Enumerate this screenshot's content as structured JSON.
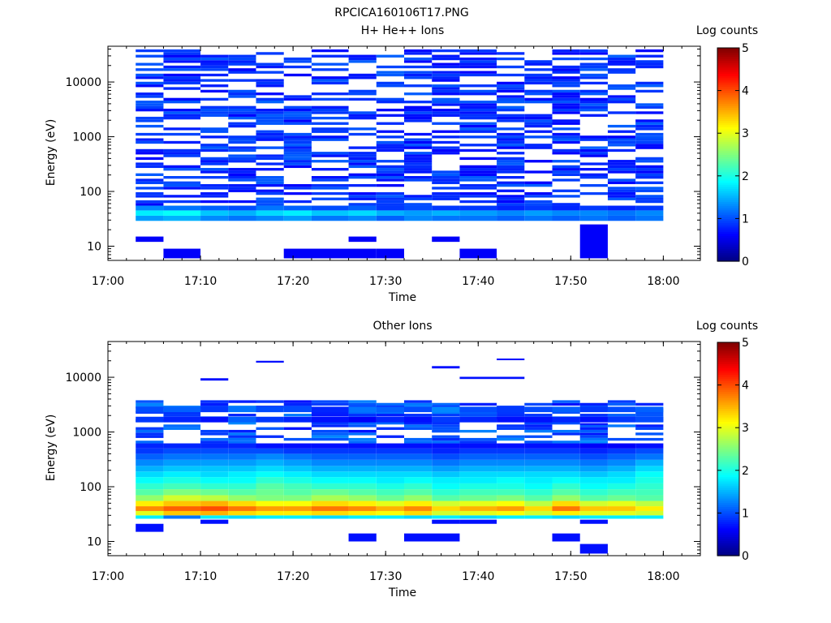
{
  "figure": {
    "title": "RPCICA160106T17.PNG"
  },
  "colors": {
    "colormap": [
      "#00007f",
      "#0000ff",
      "#007fff",
      "#00ffff",
      "#7fff7f",
      "#ffff00",
      "#ff7f00",
      "#ff0000",
      "#7f0000"
    ],
    "axis": "#000000"
  },
  "chart_data": [
    {
      "type": "heatmap",
      "title": "H+ He++ Ions",
      "xlabel": "Time",
      "ylabel": "Energy (eV)",
      "colorbar_label": "Log counts",
      "colorbar_range": [
        0,
        5
      ],
      "colorbar_ticks": [
        "0",
        "1",
        "2",
        "3",
        "4",
        "5"
      ],
      "x_ticks": [
        "17:00",
        "17:10",
        "17:20",
        "17:30",
        "17:40",
        "17:50",
        "18:00"
      ],
      "x_range": [
        "17:00",
        "18:04"
      ],
      "y_scale": "log",
      "y_range": [
        5.5,
        45000
      ],
      "y_ticks": [
        "10",
        "100",
        "1000",
        "10000"
      ],
      "time_bins": [
        "17:03",
        "17:06",
        "17:10",
        "17:13",
        "17:16",
        "17:19",
        "17:22",
        "17:26",
        "17:29",
        "17:32",
        "17:35",
        "17:38",
        "17:42",
        "17:45",
        "17:48",
        "17:51",
        "17:54",
        "17:57",
        "18:00"
      ],
      "background_level": 0.6,
      "rows": [
        {
          "e_lo": 29,
          "e_hi": 36,
          "values": [
            1.4,
            1.5,
            1.3,
            1.2,
            1.3,
            1.4,
            1.2,
            1.3,
            1.1,
            1.3,
            1.2,
            1.2,
            1.1,
            1.2,
            1.1,
            1.2,
            1.1,
            1.2
          ]
        },
        {
          "e_lo": 36,
          "e_hi": 45,
          "values": [
            1.8,
            1.9,
            1.6,
            1.5,
            1.7,
            1.8,
            1.6,
            1.7,
            1.5,
            1.4,
            1.5,
            1.4,
            1.3,
            1.4,
            1.3,
            1.3,
            1.2,
            1.3
          ]
        },
        {
          "e_lo": 45,
          "e_hi": 55,
          "values": [
            1.3,
            1.2,
            1.1,
            1.0,
            1.2,
            1.1,
            1.0,
            1.1,
            0.9,
            1.0,
            0.9,
            0.9,
            0.8,
            0.9,
            0.8,
            0.9,
            0.8,
            0.9
          ]
        }
      ],
      "low_blocks": [
        {
          "t0": "17:03",
          "t1": "17:06",
          "e_lo": 12,
          "e_hi": 15
        },
        {
          "t0": "17:06",
          "t1": "17:10",
          "e_lo": 6,
          "e_hi": 9
        },
        {
          "t0": "17:19",
          "t1": "17:29",
          "e_lo": 6,
          "e_hi": 9
        },
        {
          "t0": "17:26",
          "t1": "17:29",
          "e_lo": 12,
          "e_hi": 15
        },
        {
          "t0": "17:29",
          "t1": "17:32",
          "e_lo": 6,
          "e_hi": 9
        },
        {
          "t0": "17:35",
          "t1": "17:38",
          "e_lo": 12,
          "e_hi": 15
        },
        {
          "t0": "17:38",
          "t1": "17:42",
          "e_lo": 6,
          "e_hi": 9
        },
        {
          "t0": "17:51",
          "t1": "17:54",
          "e_lo": 6,
          "e_hi": 25
        }
      ]
    },
    {
      "type": "heatmap",
      "title": "Other Ions",
      "xlabel": "Time",
      "ylabel": "Energy (eV)",
      "colorbar_label": "Log counts",
      "colorbar_range": [
        0,
        5
      ],
      "colorbar_ticks": [
        "0",
        "1",
        "2",
        "3",
        "4",
        "5"
      ],
      "x_ticks": [
        "17:00",
        "17:10",
        "17:20",
        "17:30",
        "17:40",
        "17:50",
        "18:00"
      ],
      "x_range": [
        "17:00",
        "18:04"
      ],
      "y_scale": "log",
      "y_range": [
        5.5,
        45000
      ],
      "y_ticks": [
        "10",
        "100",
        "1000",
        "10000"
      ],
      "time_bins": [
        "17:03",
        "17:06",
        "17:10",
        "17:13",
        "17:16",
        "17:19",
        "17:22",
        "17:26",
        "17:29",
        "17:32",
        "17:35",
        "17:38",
        "17:42",
        "17:45",
        "17:48",
        "17:51",
        "17:54",
        "17:57",
        "18:00"
      ],
      "rows": [
        {
          "e_lo": 26,
          "e_hi": 30,
          "values": [
            1.8,
            1.2,
            1.8,
            1.7,
            1.8,
            1.8,
            1.7,
            1.8,
            1.8,
            1.7,
            1.8,
            1.7,
            1.8,
            1.8,
            1.7,
            1.8,
            1.8,
            1.8
          ]
        },
        {
          "e_lo": 30,
          "e_hi": 36,
          "values": [
            3.0,
            3.4,
            3.5,
            3.3,
            3.2,
            3.2,
            3.3,
            3.2,
            3.1,
            3.3,
            2.9,
            3.0,
            3.1,
            2.9,
            3.2,
            3.0,
            3.0,
            2.9
          ]
        },
        {
          "e_lo": 36,
          "e_hi": 44,
          "values": [
            3.7,
            3.9,
            4.0,
            3.8,
            3.6,
            3.6,
            3.8,
            3.7,
            3.5,
            3.7,
            3.3,
            3.5,
            3.6,
            3.3,
            3.8,
            3.4,
            3.4,
            3.2
          ]
        },
        {
          "e_lo": 44,
          "e_hi": 55,
          "values": [
            3.2,
            3.4,
            3.5,
            3.3,
            3.1,
            3.1,
            3.3,
            3.2,
            3.0,
            3.2,
            2.9,
            3.0,
            3.1,
            2.8,
            3.3,
            2.9,
            3.0,
            2.8
          ]
        },
        {
          "e_lo": 55,
          "e_hi": 70,
          "values": [
            2.6,
            2.9,
            2.8,
            2.6,
            2.5,
            2.5,
            2.7,
            2.6,
            2.4,
            2.6,
            2.3,
            2.4,
            2.5,
            2.3,
            2.6,
            2.3,
            2.4,
            2.3
          ]
        },
        {
          "e_lo": 70,
          "e_hi": 90,
          "values": [
            2.3,
            2.5,
            2.4,
            2.3,
            2.4,
            2.3,
            2.4,
            2.3,
            2.2,
            2.3,
            2.1,
            2.2,
            2.2,
            2.1,
            2.3,
            2.1,
            2.2,
            2.2
          ]
        },
        {
          "e_lo": 90,
          "e_hi": 115,
          "values": [
            2.1,
            2.2,
            2.1,
            2.1,
            2.3,
            2.2,
            2.1,
            2.1,
            2.0,
            2.1,
            1.9,
            2.0,
            2.0,
            1.9,
            2.1,
            1.9,
            2.0,
            2.1
          ]
        },
        {
          "e_lo": 115,
          "e_hi": 150,
          "values": [
            1.9,
            2.0,
            1.9,
            1.9,
            2.1,
            2.0,
            1.9,
            1.9,
            1.8,
            1.9,
            1.8,
            1.8,
            1.9,
            1.8,
            1.9,
            1.8,
            1.8,
            2.0
          ]
        },
        {
          "e_lo": 150,
          "e_hi": 190,
          "values": [
            1.7,
            1.8,
            1.7,
            1.8,
            1.9,
            1.8,
            1.7,
            1.7,
            1.7,
            1.7,
            1.6,
            1.7,
            1.7,
            1.7,
            1.7,
            1.6,
            1.7,
            1.9
          ]
        },
        {
          "e_lo": 190,
          "e_hi": 240,
          "values": [
            1.5,
            1.6,
            1.6,
            1.6,
            1.7,
            1.6,
            1.5,
            1.5,
            1.5,
            1.5,
            1.4,
            1.5,
            1.5,
            1.5,
            1.5,
            1.4,
            1.5,
            1.7
          ]
        },
        {
          "e_lo": 240,
          "e_hi": 310,
          "values": [
            1.3,
            1.4,
            1.4,
            1.4,
            1.5,
            1.4,
            1.3,
            1.3,
            1.3,
            1.3,
            1.2,
            1.3,
            1.3,
            1.3,
            1.3,
            1.2,
            1.3,
            1.5
          ]
        },
        {
          "e_lo": 310,
          "e_hi": 400,
          "values": [
            1.1,
            1.2,
            1.2,
            1.2,
            1.3,
            1.2,
            1.1,
            1.1,
            1.1,
            1.1,
            1.0,
            1.1,
            1.1,
            1.1,
            1.1,
            1.0,
            1.1,
            1.2
          ]
        },
        {
          "e_lo": 400,
          "e_hi": 500,
          "values": [
            0.9,
            1.0,
            1.0,
            1.0,
            1.0,
            0.9,
            0.9,
            0.9,
            0.9,
            0.9,
            0.8,
            0.9,
            0.9,
            0.9,
            0.9,
            0.8,
            0.9,
            1.0
          ]
        },
        {
          "e_lo": 500,
          "e_hi": 620,
          "values": [
            0.8,
            0.8,
            0.8,
            0.8,
            0.7,
            0.7,
            0.7,
            0.7,
            0.7,
            0.7,
            0.7,
            0.7,
            0.7,
            0.7,
            0.7,
            0.6,
            0.6,
            0.7
          ]
        },
        {
          "e_lo": 1500,
          "e_hi": 1900,
          "values": [
            0.9,
            0.8,
            0.7,
            1.1,
            0.9,
            0.8,
            0.7,
            0.6,
            0.8,
            0.7,
            0.9,
            0.8,
            0.7,
            0.7,
            0.8,
            0.7,
            0.9,
            1.0
          ]
        },
        {
          "e_lo": 2300,
          "e_hi": 2900,
          "values": [
            1.0,
            1.1,
            0.9,
            1.2,
            1.0,
            1.0,
            0.8,
            1.2,
            1.1,
            1.0,
            1.3,
            1.0,
            0.9,
            1.0,
            1.1,
            0.9,
            1.0,
            1.1
          ]
        }
      ],
      "sparse_level": 0.7,
      "sparse_blocks": [
        {
          "t0": "17:03",
          "t1": "17:06",
          "e_lo": 15,
          "e_hi": 21
        },
        {
          "t0": "17:10",
          "t1": "17:13",
          "e_lo": 21,
          "e_hi": 25
        },
        {
          "t0": "17:26",
          "t1": "17:29",
          "e_lo": 10,
          "e_hi": 14
        },
        {
          "t0": "17:32",
          "t1": "17:38",
          "e_lo": 10,
          "e_hi": 14
        },
        {
          "t0": "17:35",
          "t1": "17:38",
          "e_lo": 21,
          "e_hi": 25
        },
        {
          "t0": "17:38",
          "t1": "17:42",
          "e_lo": 21,
          "e_hi": 25
        },
        {
          "t0": "17:48",
          "t1": "17:51",
          "e_lo": 10,
          "e_hi": 14
        },
        {
          "t0": "17:51",
          "t1": "17:54",
          "e_lo": 6,
          "e_hi": 9
        },
        {
          "t0": "17:51",
          "t1": "17:54",
          "e_lo": 21,
          "e_hi": 25
        },
        {
          "t0": "17:10",
          "t1": "17:13",
          "e_lo": 8700,
          "e_hi": 9600
        },
        {
          "t0": "17:16",
          "t1": "17:19",
          "e_lo": 18500,
          "e_hi": 20000
        },
        {
          "t0": "17:35",
          "t1": "17:38",
          "e_lo": 14500,
          "e_hi": 16000
        },
        {
          "t0": "17:38",
          "t1": "17:45",
          "e_lo": 9300,
          "e_hi": 10200
        },
        {
          "t0": "17:42",
          "t1": "17:45",
          "e_lo": 20500,
          "e_hi": 22000
        },
        {
          "t0": "17:51",
          "t1": "17:54",
          "e_lo": 880,
          "e_hi": 960
        },
        {
          "t0": "17:51",
          "t1": "17:54",
          "e_lo": 1350,
          "e_hi": 1450
        }
      ]
    }
  ]
}
